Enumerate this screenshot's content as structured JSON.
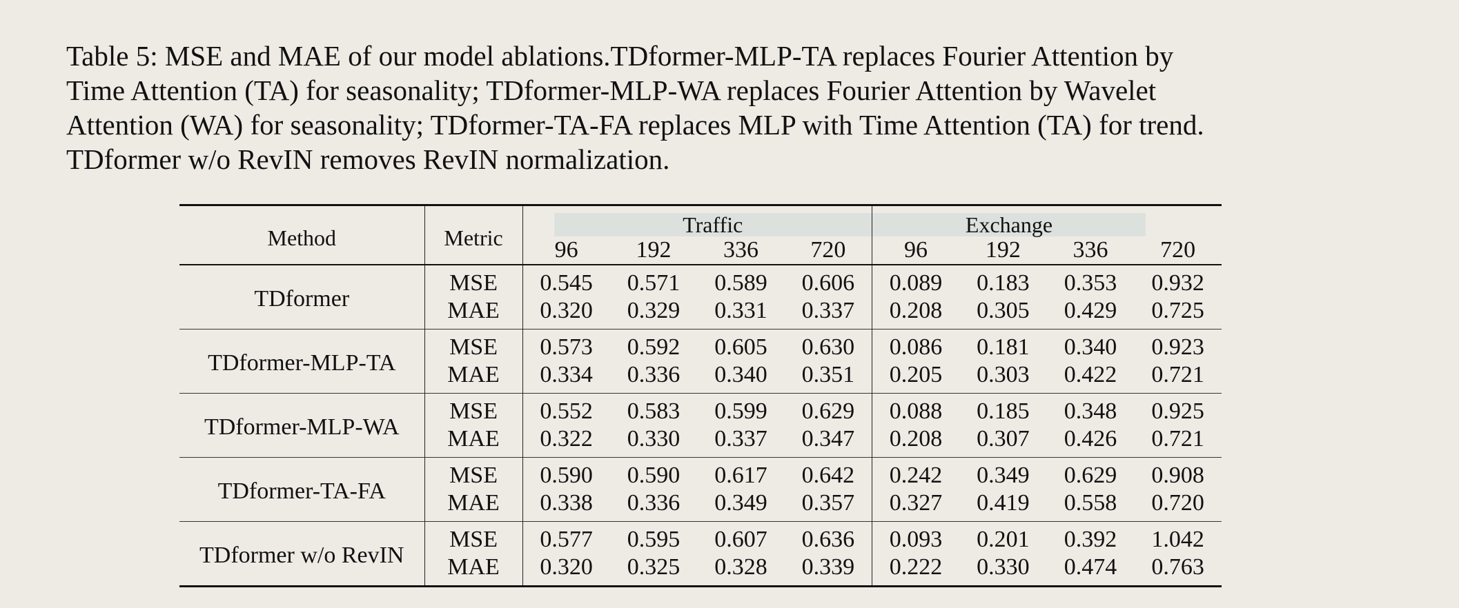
{
  "caption": {
    "lines": [
      "Table 5: MSE and MAE of our model ablations.TDformer-MLP-TA replaces Fourier Attention by",
      "Time Attention (TA) for seasonality; TDformer-MLP-WA replaces Fourier Attention by Wavelet",
      "Attention (WA) for seasonality; TDformer-TA-FA replaces MLP with Time Attention (TA) for trend.",
      "TDformer w/o RevIN removes RevIN normalization."
    ]
  },
  "table": {
    "col_method": "Method",
    "col_metric": "Metric",
    "groups": [
      "Traffic",
      "Exchange"
    ],
    "horizons": [
      "96",
      "192",
      "336",
      "720",
      "96",
      "192",
      "336",
      "720"
    ],
    "rows": [
      {
        "method": "TDformer",
        "metrics": [
          {
            "name": "MSE",
            "values": [
              "0.545",
              "0.571",
              "0.589",
              "0.606",
              "0.089",
              "0.183",
              "0.353",
              "0.932"
            ]
          },
          {
            "name": "MAE",
            "values": [
              "0.320",
              "0.329",
              "0.331",
              "0.337",
              "0.208",
              "0.305",
              "0.429",
              "0.725"
            ]
          }
        ]
      },
      {
        "method": "TDformer-MLP-TA",
        "metrics": [
          {
            "name": "MSE",
            "values": [
              "0.573",
              "0.592",
              "0.605",
              "0.630",
              "0.086",
              "0.181",
              "0.340",
              "0.923"
            ]
          },
          {
            "name": "MAE",
            "values": [
              "0.334",
              "0.336",
              "0.340",
              "0.351",
              "0.205",
              "0.303",
              "0.422",
              "0.721"
            ]
          }
        ]
      },
      {
        "method": "TDformer-MLP-WA",
        "metrics": [
          {
            "name": "MSE",
            "values": [
              "0.552",
              "0.583",
              "0.599",
              "0.629",
              "0.088",
              "0.185",
              "0.348",
              "0.925"
            ]
          },
          {
            "name": "MAE",
            "values": [
              "0.322",
              "0.330",
              "0.337",
              "0.347",
              "0.208",
              "0.307",
              "0.426",
              "0.721"
            ]
          }
        ]
      },
      {
        "method": "TDformer-TA-FA",
        "metrics": [
          {
            "name": "MSE",
            "values": [
              "0.590",
              "0.590",
              "0.617",
              "0.642",
              "0.242",
              "0.349",
              "0.629",
              "0.908"
            ]
          },
          {
            "name": "MAE",
            "values": [
              "0.338",
              "0.336",
              "0.349",
              "0.357",
              "0.327",
              "0.419",
              "0.558",
              "0.720"
            ]
          }
        ]
      },
      {
        "method": "TDformer w/o RevIN",
        "metrics": [
          {
            "name": "MSE",
            "values": [
              "0.577",
              "0.595",
              "0.607",
              "0.636",
              "0.093",
              "0.201",
              "0.392",
              "1.042"
            ]
          },
          {
            "name": "MAE",
            "values": [
              "0.320",
              "0.325",
              "0.328",
              "0.339",
              "0.222",
              "0.330",
              "0.474",
              "0.763"
            ]
          }
        ]
      }
    ]
  }
}
